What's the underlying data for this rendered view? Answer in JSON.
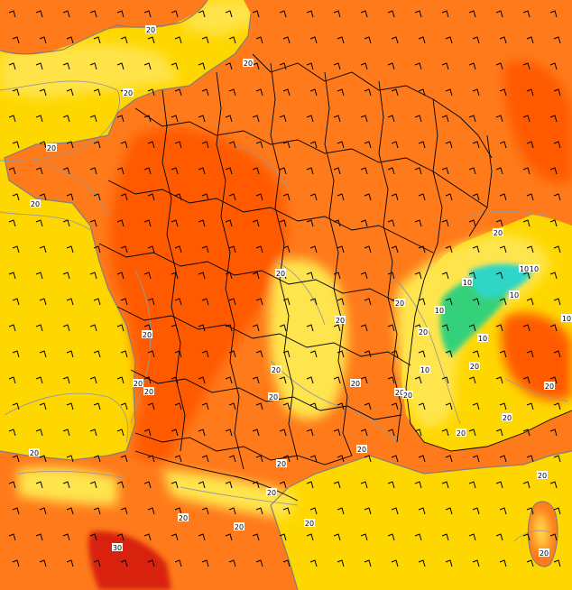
{
  "map": {
    "colors": {
      "sea_yellow": "#ffd700",
      "sea_light": "#ffe34a",
      "land_orange": "#ff7a1a",
      "land_deep": "#ff5a00",
      "mountain_yellow": "#ffe54d",
      "alps_green": "#35d17a",
      "alps_cyan": "#2fd6c8",
      "pyrenees_red": "#d82010",
      "isoline": "#9a9a9a",
      "border": "#000000"
    },
    "contour_labels": [
      {
        "text": "20",
        "id": "lbl-channel"
      },
      {
        "text": "20",
        "id": "lbl-north"
      },
      {
        "text": "20",
        "id": "lbl-bretagne-n"
      },
      {
        "text": "20",
        "id": "lbl-bretagne-w"
      },
      {
        "text": "20",
        "id": "lbl-bretagne-s"
      },
      {
        "text": "20",
        "id": "lbl-vendee"
      },
      {
        "text": "20",
        "id": "lbl-gironde"
      },
      {
        "text": "20",
        "id": "lbl-landes"
      },
      {
        "text": "20",
        "id": "lbl-biscay"
      },
      {
        "text": "20",
        "id": "lbl-massif-n"
      },
      {
        "text": "20",
        "id": "lbl-massif-e"
      },
      {
        "text": "20",
        "id": "lbl-massif-c"
      },
      {
        "text": "20",
        "id": "lbl-massif-s"
      },
      {
        "text": "20",
        "id": "lbl-cevennes"
      },
      {
        "text": "20",
        "id": "lbl-rhone"
      },
      {
        "text": "20",
        "id": "lbl-jura"
      },
      {
        "text": "20",
        "id": "lbl-alps-w"
      },
      {
        "text": "20",
        "id": "lbl-alps-s1"
      },
      {
        "text": "20",
        "id": "lbl-alps-s2"
      },
      {
        "text": "20",
        "id": "lbl-italy-n"
      },
      {
        "text": "20",
        "id": "lbl-italy-e"
      },
      {
        "text": "20",
        "id": "lbl-italy-se"
      },
      {
        "text": "20",
        "id": "lbl-provence"
      },
      {
        "text": "20",
        "id": "lbl-languedoc"
      },
      {
        "text": "20",
        "id": "lbl-gulf"
      },
      {
        "text": "20",
        "id": "lbl-catalonia"
      },
      {
        "text": "20",
        "id": "lbl-spain-n"
      },
      {
        "text": "20",
        "id": "lbl-spain-c"
      },
      {
        "text": "20",
        "id": "lbl-corsica-n"
      },
      {
        "text": "20",
        "id": "lbl-corsica-s"
      },
      {
        "text": "20",
        "id": "lbl-swiss"
      },
      {
        "text": "10",
        "id": "lbl-alps-10a"
      },
      {
        "text": "10",
        "id": "lbl-alps-10b"
      },
      {
        "text": "10",
        "id": "lbl-alps-10c"
      },
      {
        "text": "10",
        "id": "lbl-alps-10d"
      },
      {
        "text": "10",
        "id": "lbl-alps-10e"
      },
      {
        "text": "10",
        "id": "lbl-alps-10f"
      },
      {
        "text": "10",
        "id": "lbl-alps-10g"
      },
      {
        "text": "10",
        "id": "lbl-alps-10h"
      },
      {
        "text": "30",
        "id": "lbl-pyrenees-30"
      }
    ]
  }
}
